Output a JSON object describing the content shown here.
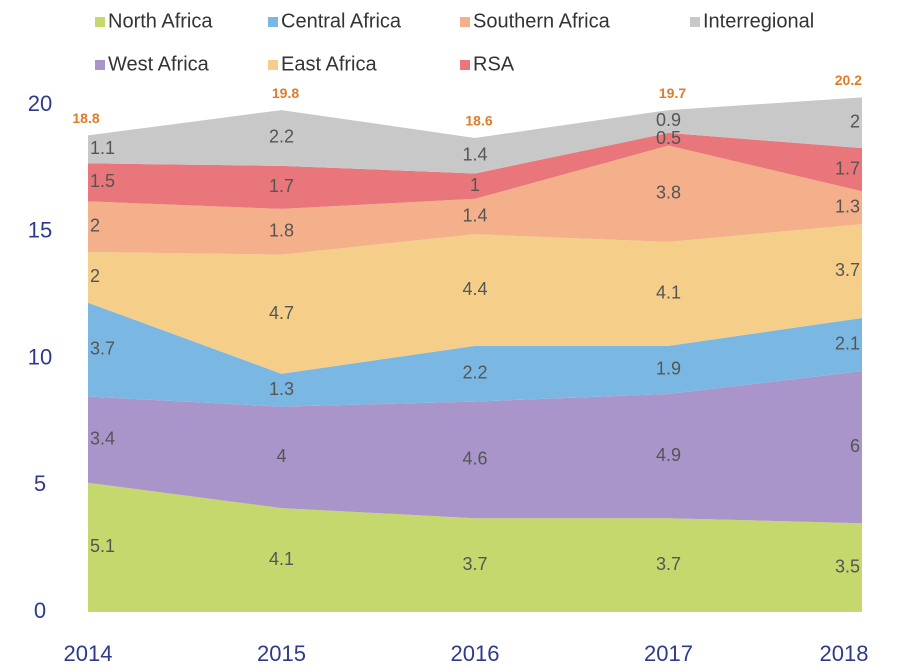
{
  "chart_data": {
    "type": "stacked_area",
    "categories": [
      "2014",
      "2015",
      "2016",
      "2017",
      "2018"
    ],
    "series": [
      {
        "name": "North Africa",
        "color": "#c5d86d",
        "values": [
          5.1,
          4.1,
          3.7,
          3.7,
          3.5
        ]
      },
      {
        "name": "West Africa",
        "color": "#a995c9",
        "values": [
          3.4,
          4.0,
          4.6,
          4.9,
          6.0
        ]
      },
      {
        "name": "Central Africa",
        "color": "#7ab8e3",
        "values": [
          3.7,
          1.3,
          2.2,
          1.9,
          2.1
        ]
      },
      {
        "name": "East Africa",
        "color": "#f5cf8a",
        "values": [
          2.0,
          4.7,
          4.4,
          4.1,
          3.7
        ]
      },
      {
        "name": "Southern Africa",
        "color": "#f4b08a",
        "values": [
          2.0,
          1.8,
          1.4,
          3.8,
          1.3
        ]
      },
      {
        "name": "RSA",
        "color": "#e8767a",
        "values": [
          1.5,
          1.7,
          1.0,
          0.5,
          1.7
        ]
      },
      {
        "name": "Interregional",
        "color": "#c8c8c8",
        "values": [
          1.1,
          2.2,
          1.4,
          0.9,
          2.0
        ]
      }
    ],
    "totals": [
      18.8,
      19.8,
      18.6,
      19.7,
      20.2
    ],
    "ylim": [
      0,
      20
    ],
    "yticks": [
      0,
      5,
      10,
      15,
      20
    ],
    "grid": false
  }
}
